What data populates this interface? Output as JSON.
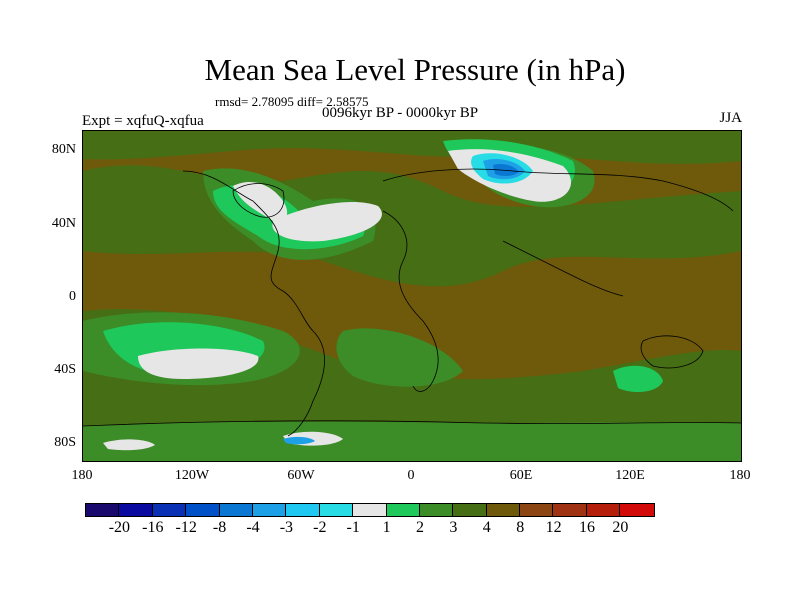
{
  "title": "Mean Sea Level Pressure (in hPa)",
  "stats": "rmsd= 2.78095 diff= 2.58575",
  "experiment": "Expt = xqfuQ-xqfua",
  "period": "0096kyr BP - 0000kyr BP",
  "season": "JJA",
  "y_ticks": [
    "80N",
    "40N",
    "0",
    "40S",
    "80S"
  ],
  "x_ticks": [
    "180",
    "120W",
    "60W",
    "0",
    "60E",
    "120E",
    "180"
  ],
  "colorbar": {
    "labels": [
      "-20",
      "-16",
      "-12",
      "-8",
      "-4",
      "-3",
      "-2",
      "-1",
      "1",
      "2",
      "3",
      "4",
      "8",
      "12",
      "16",
      "20"
    ],
    "colors": [
      "#1a0a6e",
      "#0a0aa0",
      "#0a30b4",
      "#0050c8",
      "#0a78d2",
      "#1ea0e6",
      "#1ec8f0",
      "#28dce6",
      "#e6e6e6",
      "#1ec85a",
      "#3c8c28",
      "#466e14",
      "#6e5a0a",
      "#8c4614",
      "#a03214",
      "#b41e0a",
      "#d20a0a"
    ]
  },
  "colors": {
    "background": "#ffffff",
    "field_base": "#6e5a0a",
    "field_green": "#3c8c28",
    "field_olive": "#466e14",
    "field_bright": "#1ec85a",
    "field_white": "#e6e6e6"
  }
}
